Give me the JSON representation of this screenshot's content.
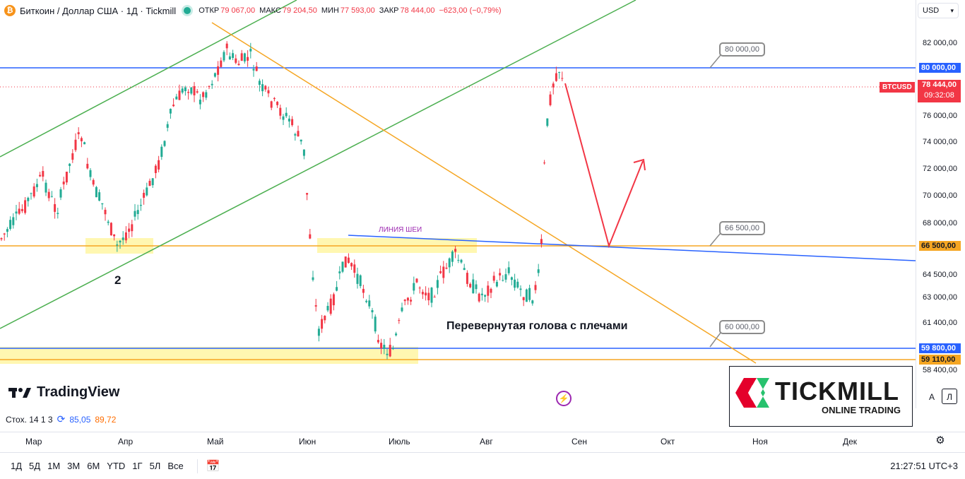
{
  "header": {
    "symbol_icon": "bitcoin-icon",
    "title": "Биткоин / Доллар США · 1Д · Tickmill",
    "open_label": "ОТКР",
    "open_value": "79 067,00",
    "high_label": "МАКС",
    "high_value": "79 204,50",
    "low_label": "МИН",
    "low_value": "77 593,00",
    "close_label": "ЗАКР",
    "close_value": "78 444,00",
    "change": "−623,00 (−0,79%)"
  },
  "currency_selector": "USD",
  "price_ticks": [
    "82 000,00",
    "76 000,00",
    "74 000,00",
    "72 000,00",
    "70 000,00",
    "68 000,00",
    "64 500,00",
    "63 000,00",
    "61 400,00",
    "58 400,00"
  ],
  "price_labels": {
    "p80000": "80 000,00",
    "p66500": "66 500,00",
    "p59800": "59 800,00",
    "p59110": "59 110,00",
    "current": "78 444,00",
    "countdown": "09:32:08",
    "symbol_tag": "BTCUSD"
  },
  "callouts": {
    "c80000": "80 000,00",
    "c66500": "66 500,00",
    "c60000": "60 000,00"
  },
  "annotations": {
    "neckline": "ЛИНИЯ ШЕИ",
    "pattern": "Перевернутая голова с плечами",
    "point_label": "2"
  },
  "brand": {
    "tradingview": "TradingView",
    "tickmill": "TICKMILL",
    "tickmill_sub": "ONLINE TRADING"
  },
  "indicator": {
    "name": "Стох. 14 1 3",
    "k": "85,05",
    "d": "89,72"
  },
  "months": [
    "Мар",
    "Апр",
    "Май",
    "Июн",
    "Июль",
    "Авг",
    "Сен",
    "Окт",
    "Ноя",
    "Дек"
  ],
  "periods": [
    "1Д",
    "5Д",
    "1М",
    "3М",
    "6М",
    "YTD",
    "1Г",
    "5Л",
    "Все"
  ],
  "clock": "21:27:51 UTC+3",
  "scale_buttons": {
    "auto": "A",
    "log": "Л"
  },
  "colors": {
    "up": "#22ab94",
    "down": "#f23645",
    "green_line": "#4caf50",
    "orange_line": "#f5a623",
    "blue_line": "#2962ff",
    "highlight": "#fff59d"
  }
}
